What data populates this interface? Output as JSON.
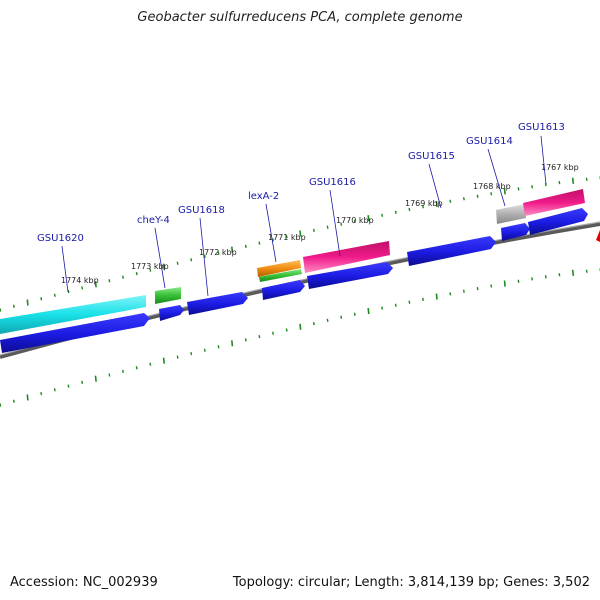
{
  "title": "Geobacter sulfurreducens PCA, complete genome",
  "footer": {
    "accession": "Accession: NC_002939",
    "stats": "Topology: circular; Length: 3,814,139 bp; Genes: 3,502"
  },
  "colors": {
    "cds": "#1a1ae0",
    "cyan_feature": "#19e0e8",
    "green_feature": "#35c035",
    "orange_feature": "#f08c10",
    "pink_feature": "#ef1a8a",
    "gray_feature": "#b0b0b0",
    "backbone": "#808080",
    "ticks": "#1f8a1f",
    "label": "#1a1aa8"
  },
  "scale_labels": [
    "1774 kbp",
    "1773 kbp",
    "1772 kbp",
    "1771 kbp",
    "1770 kbp",
    "1769 kbp",
    "1768 kbp",
    "1767 kbp"
  ],
  "gene_labels": [
    "GSU1620",
    "cheY-4",
    "GSU1618",
    "lexA-2",
    "GSU1616",
    "GSU1615",
    "GSU1614",
    "GSU1613"
  ]
}
